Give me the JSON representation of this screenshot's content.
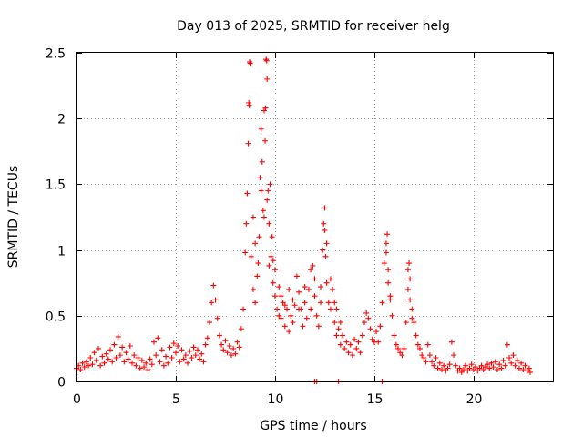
{
  "chart_data": {
    "type": "scatter",
    "title": "Day 013 of 2025, SRMTID for receiver helg",
    "xlabel": "GPS time / hours",
    "ylabel": "SRMTID / TECUs",
    "xlim": [
      0,
      24
    ],
    "ylim": [
      0,
      2.5
    ],
    "xticks": [
      0,
      5,
      10,
      15,
      20
    ],
    "xtick_labels": [
      "0",
      "5",
      "10",
      "15",
      "20"
    ],
    "yticks": [
      0,
      0.5,
      1,
      1.5,
      2,
      2.5
    ],
    "ytick_labels": [
      "0",
      "0.5",
      "1",
      "1.5",
      "2",
      "2.5"
    ],
    "grid": true,
    "marker": "+",
    "series": [
      {
        "name": "SRMTID",
        "color": "#ff0000",
        "points": [
          [
            0.0,
            0.1
          ],
          [
            0.1,
            0.12
          ],
          [
            0.2,
            0.09
          ],
          [
            0.3,
            0.14
          ],
          [
            0.4,
            0.11
          ],
          [
            0.5,
            0.15
          ],
          [
            0.6,
            0.12
          ],
          [
            0.7,
            0.18
          ],
          [
            0.8,
            0.13
          ],
          [
            0.9,
            0.22
          ],
          [
            1.0,
            0.16
          ],
          [
            1.1,
            0.25
          ],
          [
            1.2,
            0.12
          ],
          [
            1.3,
            0.19
          ],
          [
            1.4,
            0.14
          ],
          [
            1.5,
            0.21
          ],
          [
            1.6,
            0.17
          ],
          [
            1.7,
            0.24
          ],
          [
            1.8,
            0.15
          ],
          [
            1.9,
            0.28
          ],
          [
            2.0,
            0.18
          ],
          [
            2.1,
            0.34
          ],
          [
            2.2,
            0.2
          ],
          [
            2.3,
            0.26
          ],
          [
            2.4,
            0.15
          ],
          [
            2.5,
            0.22
          ],
          [
            2.6,
            0.17
          ],
          [
            2.7,
            0.27
          ],
          [
            2.8,
            0.14
          ],
          [
            2.9,
            0.2
          ],
          [
            3.0,
            0.12
          ],
          [
            3.1,
            0.18
          ],
          [
            3.2,
            0.1
          ],
          [
            3.3,
            0.16
          ],
          [
            3.4,
            0.11
          ],
          [
            3.5,
            0.14
          ],
          [
            3.6,
            0.09
          ],
          [
            3.7,
            0.17
          ],
          [
            3.8,
            0.13
          ],
          [
            3.9,
            0.3
          ],
          [
            4.0,
            0.2
          ],
          [
            4.1,
            0.33
          ],
          [
            4.2,
            0.15
          ],
          [
            4.3,
            0.24
          ],
          [
            4.4,
            0.12
          ],
          [
            4.5,
            0.19
          ],
          [
            4.6,
            0.14
          ],
          [
            4.7,
            0.26
          ],
          [
            4.8,
            0.18
          ],
          [
            4.9,
            0.29
          ],
          [
            5.0,
            0.22
          ],
          [
            5.1,
            0.27
          ],
          [
            5.2,
            0.15
          ],
          [
            5.3,
            0.24
          ],
          [
            5.4,
            0.17
          ],
          [
            5.5,
            0.2
          ],
          [
            5.6,
            0.14
          ],
          [
            5.7,
            0.23
          ],
          [
            5.8,
            0.18
          ],
          [
            5.9,
            0.26
          ],
          [
            6.0,
            0.2
          ],
          [
            6.1,
            0.24
          ],
          [
            6.2,
            0.17
          ],
          [
            6.3,
            0.21
          ],
          [
            6.4,
            0.15
          ],
          [
            6.5,
            0.28
          ],
          [
            6.6,
            0.33
          ],
          [
            6.7,
            0.45
          ],
          [
            6.8,
            0.6
          ],
          [
            6.9,
            0.73
          ],
          [
            7.0,
            0.62
          ],
          [
            7.1,
            0.48
          ],
          [
            7.2,
            0.35
          ],
          [
            7.3,
            0.28
          ],
          [
            7.4,
            0.24
          ],
          [
            7.5,
            0.31
          ],
          [
            7.6,
            0.22
          ],
          [
            7.7,
            0.27
          ],
          [
            7.8,
            0.2
          ],
          [
            7.9,
            0.25
          ],
          [
            8.0,
            0.21
          ],
          [
            8.1,
            0.3
          ],
          [
            8.2,
            0.26
          ],
          [
            8.3,
            0.4
          ],
          [
            8.4,
            0.55
          ],
          [
            8.5,
            0.98
          ],
          [
            8.55,
            1.2
          ],
          [
            8.6,
            1.43
          ],
          [
            8.65,
            1.81
          ],
          [
            8.7,
            2.1
          ],
          [
            8.75,
            2.42
          ],
          [
            8.8,
            0.95
          ],
          [
            8.9,
            0.7
          ],
          [
            9.0,
            0.6
          ],
          [
            9.1,
            0.8
          ],
          [
            9.2,
            1.1
          ],
          [
            9.25,
            1.55
          ],
          [
            9.3,
            1.92
          ],
          [
            9.35,
            1.67
          ],
          [
            9.4,
            1.3
          ],
          [
            9.45,
            2.06
          ],
          [
            9.5,
            1.83
          ],
          [
            9.55,
            2.45
          ],
          [
            9.6,
            2.3
          ],
          [
            9.65,
            1.45
          ],
          [
            9.7,
            1.2
          ],
          [
            9.75,
            1.5
          ],
          [
            9.8,
            0.95
          ],
          [
            9.9,
            0.75
          ],
          [
            10.0,
            0.65
          ],
          [
            10.1,
            0.55
          ],
          [
            10.2,
            0.5
          ],
          [
            10.3,
            0.48
          ],
          [
            10.4,
            0.6
          ],
          [
            10.5,
            0.42
          ],
          [
            10.6,
            0.55
          ],
          [
            10.7,
            0.38
          ],
          [
            10.8,
            0.5
          ],
          [
            10.9,
            0.45
          ],
          [
            11.0,
            0.58
          ],
          [
            11.1,
            0.8
          ],
          [
            11.2,
            0.68
          ],
          [
            11.3,
            0.55
          ],
          [
            11.4,
            0.42
          ],
          [
            11.5,
            0.6
          ],
          [
            11.6,
            0.48
          ],
          [
            11.7,
            0.7
          ],
          [
            11.8,
            0.55
          ],
          [
            11.9,
            0.88
          ],
          [
            12.0,
            0.65
          ],
          [
            12.1,
            0.5
          ],
          [
            12.2,
            0.42
          ],
          [
            12.3,
            0.6
          ],
          [
            12.4,
            1.0
          ],
          [
            12.45,
            1.2
          ],
          [
            12.5,
            1.32
          ],
          [
            12.55,
            0.95
          ],
          [
            12.6,
            0.75
          ],
          [
            12.7,
            0.6
          ],
          [
            12.8,
            0.55
          ],
          [
            12.9,
            0.7
          ],
          [
            13.0,
            0.45
          ],
          [
            13.1,
            0.35
          ],
          [
            13.2,
            0.4
          ],
          [
            13.3,
            0.28
          ],
          [
            13.4,
            0.35
          ],
          [
            13.5,
            0.25
          ],
          [
            13.6,
            0.3
          ],
          [
            13.7,
            0.22
          ],
          [
            13.8,
            0.28
          ],
          [
            13.9,
            0.2
          ],
          [
            14.0,
            0.32
          ],
          [
            14.1,
            0.25
          ],
          [
            14.2,
            0.3
          ],
          [
            14.3,
            0.22
          ],
          [
            14.4,
            0.35
          ],
          [
            14.5,
            0.45
          ],
          [
            14.6,
            0.52
          ],
          [
            14.7,
            0.48
          ],
          [
            14.8,
            0.4
          ],
          [
            14.9,
            0.32
          ],
          [
            15.0,
            0.3
          ],
          [
            15.1,
            0.38
          ],
          [
            15.2,
            0.3
          ],
          [
            15.3,
            0.42
          ],
          [
            15.4,
            0.6
          ],
          [
            15.5,
            0.9
          ],
          [
            15.6,
            1.05
          ],
          [
            15.65,
            1.12
          ],
          [
            15.7,
            0.85
          ],
          [
            15.8,
            0.62
          ],
          [
            15.9,
            0.5
          ],
          [
            16.0,
            0.35
          ],
          [
            16.1,
            0.28
          ],
          [
            16.2,
            0.25
          ],
          [
            16.3,
            0.22
          ],
          [
            16.4,
            0.2
          ],
          [
            16.5,
            0.25
          ],
          [
            16.6,
            0.45
          ],
          [
            16.7,
            0.7
          ],
          [
            16.75,
            0.9
          ],
          [
            16.8,
            0.78
          ],
          [
            16.9,
            0.55
          ],
          [
            17.0,
            0.45
          ],
          [
            17.1,
            0.35
          ],
          [
            17.2,
            0.28
          ],
          [
            17.3,
            0.25
          ],
          [
            17.4,
            0.2
          ],
          [
            17.5,
            0.18
          ],
          [
            17.6,
            0.15
          ],
          [
            17.7,
            0.28
          ],
          [
            17.8,
            0.2
          ],
          [
            17.9,
            0.15
          ],
          [
            18.0,
            0.12
          ],
          [
            18.1,
            0.18
          ],
          [
            18.2,
            0.1
          ],
          [
            18.3,
            0.14
          ],
          [
            18.4,
            0.09
          ],
          [
            18.5,
            0.12
          ],
          [
            18.6,
            0.08
          ],
          [
            18.7,
            0.1
          ],
          [
            18.8,
            0.13
          ],
          [
            18.9,
            0.3
          ],
          [
            19.0,
            0.2
          ],
          [
            19.1,
            0.12
          ],
          [
            19.2,
            0.08
          ],
          [
            19.3,
            0.1
          ],
          [
            19.4,
            0.07
          ],
          [
            19.5,
            0.09
          ],
          [
            19.6,
            0.12
          ],
          [
            19.7,
            0.08
          ],
          [
            19.8,
            0.1
          ],
          [
            19.9,
            0.13
          ],
          [
            20.0,
            0.09
          ],
          [
            20.1,
            0.11
          ],
          [
            20.2,
            0.08
          ],
          [
            20.3,
            0.1
          ],
          [
            20.4,
            0.12
          ],
          [
            20.5,
            0.09
          ],
          [
            20.6,
            0.11
          ],
          [
            20.7,
            0.13
          ],
          [
            20.8,
            0.1
          ],
          [
            20.9,
            0.14
          ],
          [
            21.0,
            0.11
          ],
          [
            21.1,
            0.15
          ],
          [
            21.2,
            0.09
          ],
          [
            21.3,
            0.13
          ],
          [
            21.4,
            0.1
          ],
          [
            21.5,
            0.16
          ],
          [
            21.6,
            0.12
          ],
          [
            21.7,
            0.28
          ],
          [
            21.8,
            0.18
          ],
          [
            21.9,
            0.14
          ],
          [
            22.0,
            0.2
          ],
          [
            22.1,
            0.12
          ],
          [
            22.2,
            0.16
          ],
          [
            22.3,
            0.1
          ],
          [
            22.4,
            0.14
          ],
          [
            22.5,
            0.09
          ],
          [
            22.6,
            0.12
          ],
          [
            22.7,
            0.08
          ],
          [
            22.8,
            0.1
          ],
          [
            22.85,
            0.07
          ],
          [
            8.72,
            2.43
          ],
          [
            9.58,
            2.44
          ],
          [
            8.68,
            2.12
          ],
          [
            9.52,
            2.08
          ],
          [
            8.9,
            1.25
          ],
          [
            9.0,
            1.05
          ],
          [
            9.15,
            0.9
          ],
          [
            9.3,
            1.45
          ],
          [
            9.45,
            1.25
          ],
          [
            9.6,
            1.38
          ],
          [
            9.7,
            0.88
          ],
          [
            9.85,
            1.1
          ],
          [
            9.9,
            0.92
          ],
          [
            10.0,
            0.85
          ],
          [
            10.2,
            0.72
          ],
          [
            10.3,
            0.65
          ],
          [
            10.5,
            0.58
          ],
          [
            10.7,
            0.7
          ],
          [
            10.9,
            0.62
          ],
          [
            11.2,
            0.55
          ],
          [
            11.5,
            0.72
          ],
          [
            11.8,
            0.85
          ],
          [
            12.0,
            0.78
          ],
          [
            12.3,
            0.72
          ],
          [
            12.5,
            1.15
          ],
          [
            12.6,
            1.05
          ],
          [
            12.8,
            0.78
          ],
          [
            13.0,
            0.6
          ],
          [
            13.1,
            0.55
          ],
          [
            13.3,
            0.45
          ],
          [
            15.6,
            0.98
          ],
          [
            15.7,
            0.75
          ],
          [
            15.8,
            0.65
          ],
          [
            16.7,
            0.85
          ],
          [
            16.8,
            0.62
          ],
          [
            16.9,
            0.48
          ],
          [
            12.0,
            0.0
          ],
          [
            12.1,
            0.0
          ],
          [
            13.2,
            0.0
          ],
          [
            15.4,
            0.0
          ]
        ]
      }
    ]
  }
}
